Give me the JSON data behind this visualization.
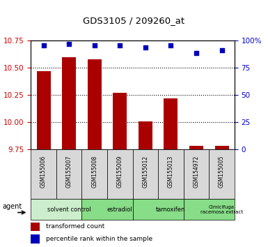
{
  "title": "GDS3105 / 209260_at",
  "samples": [
    "GSM155006",
    "GSM155007",
    "GSM155008",
    "GSM155009",
    "GSM155012",
    "GSM155013",
    "GSM154972",
    "GSM155005"
  ],
  "bar_values": [
    10.47,
    10.6,
    10.58,
    10.27,
    10.01,
    10.22,
    9.78,
    9.78
  ],
  "percentile_values": [
    96,
    97,
    96,
    96,
    94,
    96,
    89,
    91
  ],
  "ylim": [
    9.75,
    10.75
  ],
  "yticks_left": [
    9.75,
    10.0,
    10.25,
    10.5,
    10.75
  ],
  "yticks_right": [
    0,
    25,
    50,
    75,
    100
  ],
  "bar_color": "#aa0000",
  "dot_color": "#0000bb",
  "agent_groups": [
    {
      "label": "solvent control",
      "start": 0,
      "end": 2,
      "color": "#cceecc"
    },
    {
      "label": "estradiol",
      "start": 2,
      "end": 4,
      "color": "#88dd88"
    },
    {
      "label": "tamoxifen",
      "start": 4,
      "end": 6,
      "color": "#88dd88"
    },
    {
      "label": "Cimicifuga\nracemosa extract",
      "start": 6,
      "end": 8,
      "color": "#88dd88"
    }
  ],
  "agent_label": "agent",
  "legend_bar_label": "transformed count",
  "legend_dot_label": "percentile rank within the sample",
  "plot_bg_color": "#ffffff",
  "sample_box_color": "#d8d8d8",
  "grid_linestyle": "dotted",
  "grid_color": "#000000"
}
